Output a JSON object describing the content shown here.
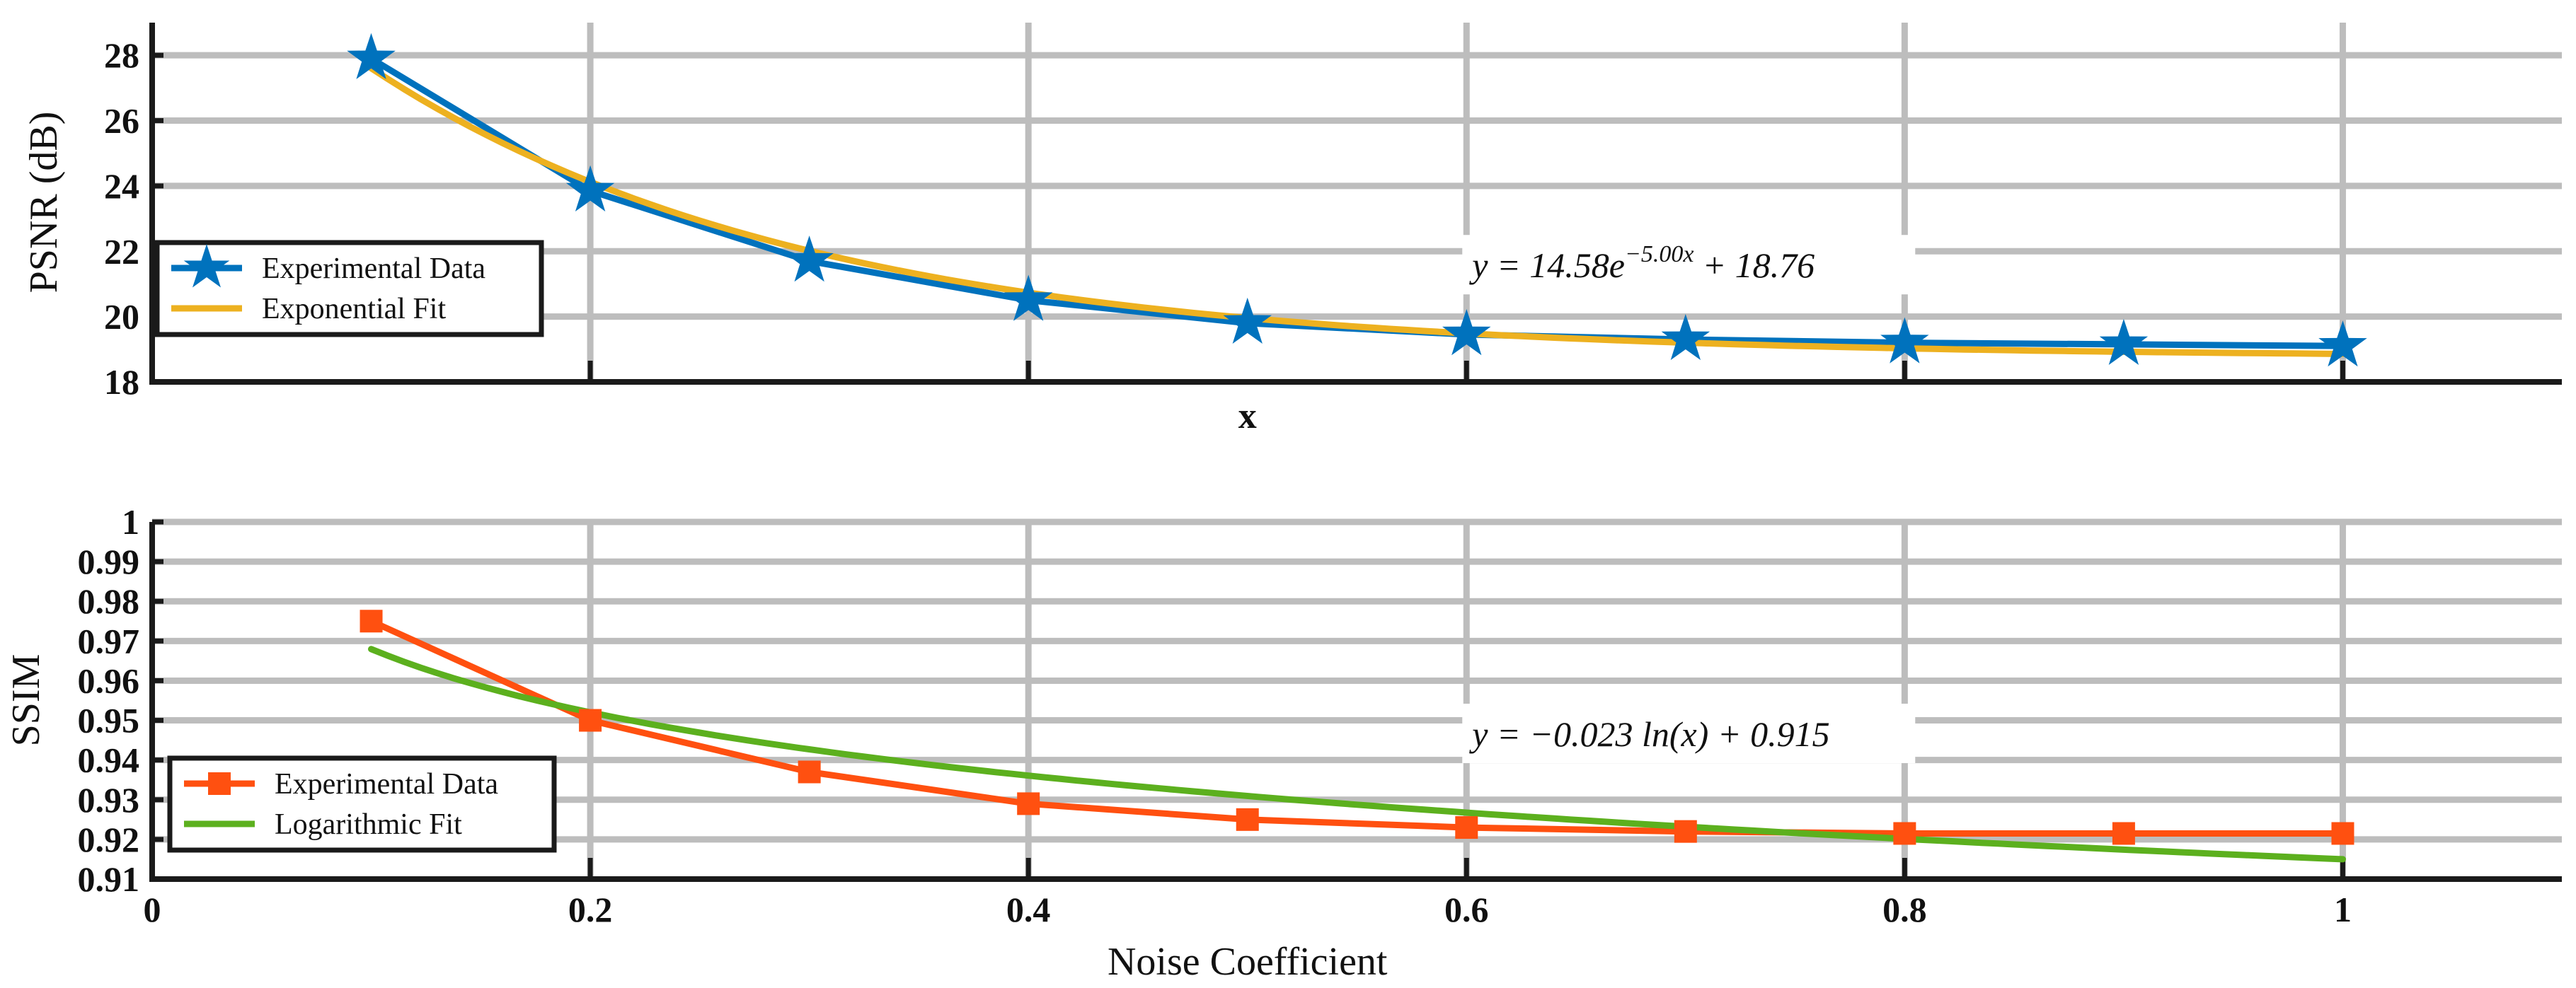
{
  "chart_data": [
    {
      "type": "line",
      "xlabel": "x",
      "ylabel": "PSNR (dB)",
      "xlim": [
        0,
        1.1
      ],
      "ylim": [
        18,
        29
      ],
      "x_ticks": [
        0.2,
        0.4,
        0.6,
        0.8,
        1
      ],
      "y_ticks": [
        18,
        20,
        22,
        24,
        26,
        28
      ],
      "y_tick_labels": [
        "18",
        "20",
        "22",
        "24",
        "26",
        "28"
      ],
      "grid": true,
      "legend_position": "lower-left",
      "series": [
        {
          "name": "Experimental Data",
          "color": "#0072BD",
          "marker": "star",
          "x": [
            0.1,
            0.2,
            0.3,
            0.4,
            0.5,
            0.6,
            0.7,
            0.8,
            0.9,
            1.0
          ],
          "values": [
            27.9,
            23.85,
            21.7,
            20.5,
            19.8,
            19.45,
            19.3,
            19.2,
            19.15,
            19.1
          ]
        },
        {
          "name": "Exponential Fit",
          "color": "#EDB120",
          "marker": "none",
          "fit": {
            "kind": "exponential",
            "a": 14.58,
            "b": -5.0,
            "c": 18.76
          },
          "x_range": [
            0.1,
            1.0
          ]
        }
      ],
      "annotation": {
        "x": 0.6,
        "y": 21.2,
        "text": "y = 14.58e^(−5.00x) + 18.76",
        "parts": {
          "lhs": "y = 14.58e",
          "exponent": "−5.00x",
          "rhs": "+ 18.76"
        }
      }
    },
    {
      "type": "line",
      "xlabel": "Noise Coefficient",
      "ylabel": "SSIM",
      "xlim": [
        0,
        1.1
      ],
      "ylim": [
        0.91,
        1.0
      ],
      "x_ticks": [
        0,
        0.2,
        0.4,
        0.6,
        0.8,
        1
      ],
      "x_tick_labels": [
        "0",
        "0.2",
        "0.4",
        "0.6",
        "0.8",
        "1"
      ],
      "y_ticks": [
        0.91,
        0.92,
        0.93,
        0.94,
        0.95,
        0.96,
        0.97,
        0.98,
        0.99,
        1.0
      ],
      "y_tick_labels": [
        "0.91",
        "0.92",
        "0.93",
        "0.94",
        "0.95",
        "0.96",
        "0.97",
        "0.98",
        "0.99",
        "1"
      ],
      "grid": true,
      "legend_position": "lower-left",
      "series": [
        {
          "name": "Experimental Data",
          "color": "#FF5010",
          "marker": "square",
          "x": [
            0.1,
            0.2,
            0.3,
            0.4,
            0.5,
            0.6,
            0.7,
            0.8,
            0.9,
            1.0
          ],
          "values": [
            0.975,
            0.95,
            0.937,
            0.929,
            0.925,
            0.923,
            0.922,
            0.9215,
            0.9215,
            0.9215
          ]
        },
        {
          "name": "Logarithmic Fit",
          "color": "#5CB01E",
          "marker": "none",
          "fit": {
            "kind": "logarithmic",
            "a": -0.023,
            "b": 0.915
          },
          "x_range": [
            0.1,
            1.0
          ]
        }
      ],
      "annotation": {
        "x": 0.6,
        "y": 0.9435,
        "text": "y = −0.023 ln(x) + 0.915"
      }
    }
  ]
}
